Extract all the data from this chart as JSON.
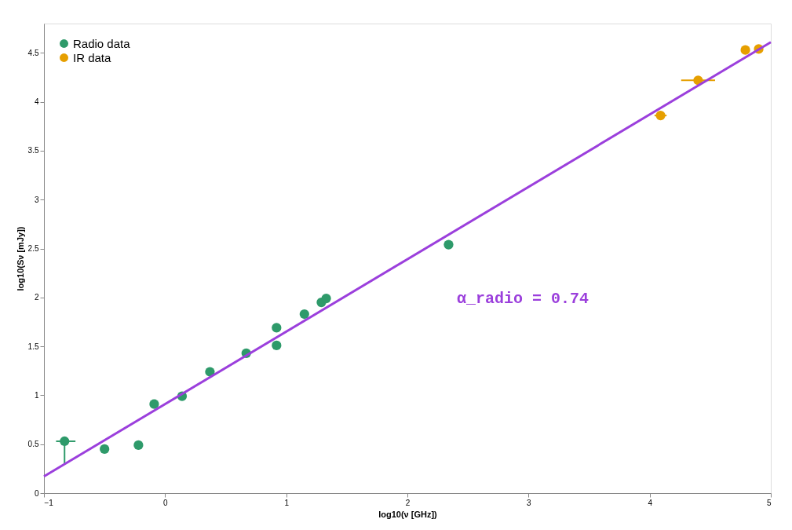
{
  "chart_data": {
    "type": "scatter",
    "xlabel": "log10(ν [GHz])",
    "ylabel": "log10(Sν [mJy])",
    "xlim": [
      -1,
      5
    ],
    "ylim": [
      0,
      4.8
    ],
    "xticks": [
      -1,
      0,
      1,
      2,
      3,
      4,
      5
    ],
    "yticks": [
      0,
      0.5,
      1,
      1.5,
      2,
      2.5,
      3,
      3.5,
      4,
      4.5
    ],
    "grid": false,
    "legend": "top left",
    "series": [
      {
        "name": "Radio data",
        "marker": "circle",
        "color": "#2e9a6a",
        "x": [
          -0.83,
          -0.5,
          -0.22,
          -0.09,
          0.14,
          0.37,
          0.67,
          0.92,
          0.92,
          1.15,
          1.29,
          1.33,
          2.34
        ],
        "values": [
          0.53,
          0.45,
          0.49,
          0.91,
          0.99,
          1.24,
          1.43,
          1.69,
          1.51,
          1.83,
          1.95,
          1.99,
          2.54
        ],
        "errors": [
          [
            0.29,
            0.55
          ],
          null,
          null,
          null,
          null,
          null,
          null,
          null,
          null,
          null,
          null,
          null,
          null
        ],
        "xerrors": [
          [
            -0.9,
            -0.74
          ],
          null,
          null,
          null,
          null,
          null,
          null,
          null,
          null,
          null,
          null,
          null,
          null
        ]
      },
      {
        "name": "IR data",
        "marker": "circle",
        "color": "#e69f00",
        "x": [
          4.09,
          4.4,
          4.79,
          4.9
        ],
        "values": [
          3.86,
          4.22,
          4.53,
          4.54
        ],
        "xerrors": [
          [
            4.04,
            4.14
          ],
          [
            4.26,
            4.54
          ],
          null,
          null
        ]
      },
      {
        "type": "line",
        "color": "#9b3fdc",
        "x": [
          -1,
          5
        ],
        "values": [
          0.17,
          4.61
        ]
      }
    ],
    "annotations": [
      "α_radio = 0.74"
    ]
  }
}
